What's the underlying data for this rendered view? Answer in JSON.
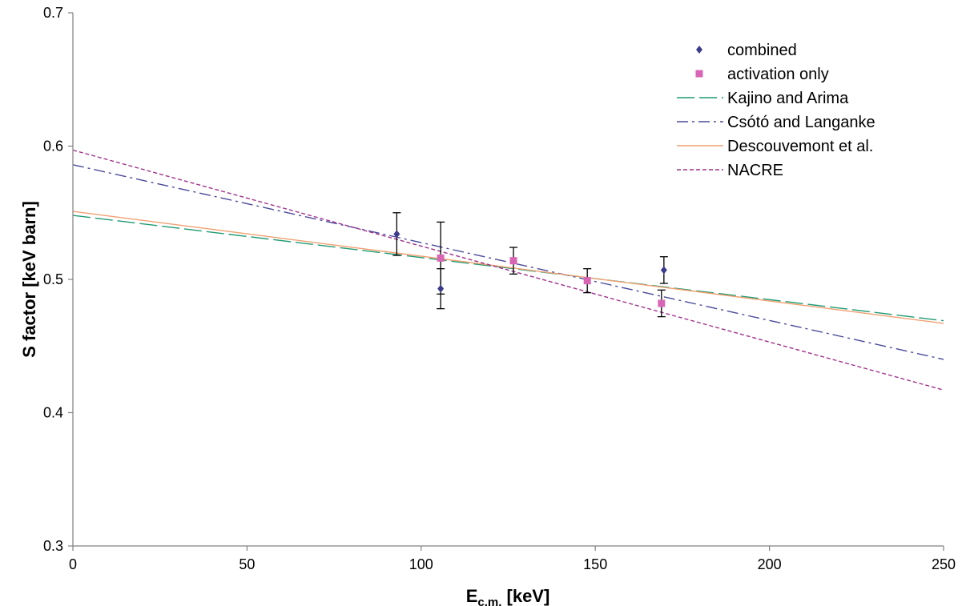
{
  "chart_data": {
    "type": "scatter",
    "xlabel": "E",
    "xlabel_sub": "c.m.",
    "xlabel_suffix": " [keV]",
    "ylabel": "S factor [keV barn]",
    "xlim": [
      0,
      250
    ],
    "ylim": [
      0.3,
      0.7
    ],
    "x_ticks": [
      0,
      50,
      100,
      150,
      200,
      250
    ],
    "y_ticks": [
      0.3,
      0.4,
      0.5,
      0.6,
      0.7
    ],
    "x_tick_labels": [
      "0",
      "50",
      "100",
      "150",
      "200",
      "250"
    ],
    "y_tick_labels": [
      "0.3",
      "0.4",
      "0.5",
      "0.6",
      "0.7"
    ],
    "grid": false,
    "legend_position": "top-right",
    "points": [
      {
        "name": "combined",
        "marker": "diamond",
        "color": "#3c3a8c",
        "data": [
          {
            "x": 93.0,
            "y": 0.534,
            "err": 0.016
          },
          {
            "x": 105.6,
            "y": 0.493,
            "err": 0.015
          },
          {
            "x": 169.7,
            "y": 0.507,
            "err": 0.01
          }
        ]
      },
      {
        "name": "activation only",
        "marker": "square",
        "color": "#d966b4",
        "data": [
          {
            "x": 105.6,
            "y": 0.516,
            "err": 0.027
          },
          {
            "x": 126.5,
            "y": 0.514,
            "err": 0.01
          },
          {
            "x": 147.7,
            "y": 0.499,
            "err": 0.009
          },
          {
            "x": 169.0,
            "y": 0.482,
            "err": 0.01
          }
        ]
      }
    ],
    "series": [
      {
        "name": "Kajino and Arima",
        "style": "long-dash",
        "color": "#1f9a74",
        "x": [
          0,
          250
        ],
        "y": [
          0.548,
          0.469
        ]
      },
      {
        "name": "Csótó and Langanke",
        "style": "dash-dot",
        "color": "#4a4a9a",
        "x": [
          0,
          250
        ],
        "y": [
          0.586,
          0.44
        ]
      },
      {
        "name": "Descouvemont et al.",
        "style": "solid",
        "color": "#f0a070",
        "x": [
          0,
          250
        ],
        "y": [
          0.551,
          0.467
        ]
      },
      {
        "name": "NACRE",
        "style": "short-dash",
        "color": "#a0328c",
        "x": [
          0,
          250
        ],
        "y": [
          0.597,
          0.417
        ]
      }
    ]
  }
}
